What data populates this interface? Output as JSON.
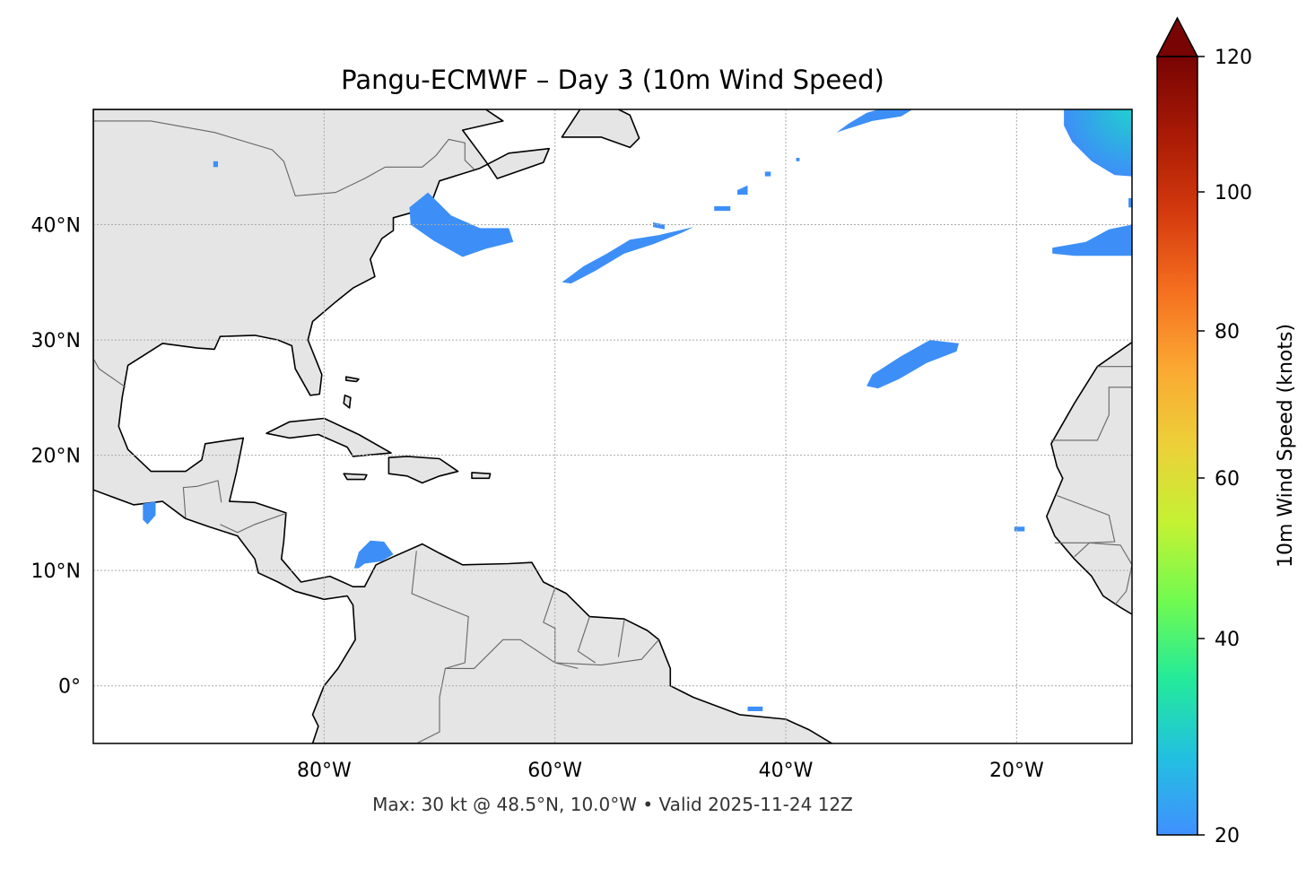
{
  "title": "Pangu-ECMWF – Day 3 (10m Wind Speed)",
  "footer": "Max: 30 kt @ 48.5°N, 10.0°W • Valid 2025-11-24 12Z",
  "map": {
    "projection": "PlateCarree",
    "lon_range": [
      -100,
      -10
    ],
    "lat_range": [
      -5,
      50
    ],
    "land_color": "#e5e5e5",
    "ocean_color": "#ffffff",
    "coastline_color": "#000000",
    "border_color": "#666666",
    "gridlines": "dotted",
    "x_ticks": [
      {
        "value": -80,
        "label": "80°W"
      },
      {
        "value": -60,
        "label": "60°W"
      },
      {
        "value": -40,
        "label": "40°W"
      },
      {
        "value": -20,
        "label": "20°W"
      }
    ],
    "y_ticks": [
      {
        "value": 40,
        "label": "40°N"
      },
      {
        "value": 30,
        "label": "30°N"
      },
      {
        "value": 20,
        "label": "20°N"
      },
      {
        "value": 10,
        "label": "10°N"
      },
      {
        "value": 0,
        "label": "0°"
      }
    ]
  },
  "field": {
    "name": "10m Wind Speed",
    "units": "knots",
    "max_value_kt": 30,
    "patch_color": "#3d8ff7",
    "peak_color": "#1fc8d8"
  },
  "colorbar": {
    "label": "10m Wind Speed (knots)",
    "range": [
      20,
      120
    ],
    "extend": "max",
    "ticks": [
      {
        "value": 20,
        "label": "20"
      },
      {
        "value": 40,
        "label": "40"
      },
      {
        "value": 60,
        "label": "60"
      },
      {
        "value": 80,
        "label": "80"
      },
      {
        "value": 100,
        "label": "100"
      },
      {
        "value": 120,
        "label": "120"
      }
    ],
    "colors": [
      "#4090fe",
      "#22c0e0",
      "#23ea9a",
      "#70fa50",
      "#c4f233",
      "#ecd038",
      "#fba832",
      "#f56f1f",
      "#d43a0e",
      "#a81a05",
      "#780404"
    ]
  }
}
